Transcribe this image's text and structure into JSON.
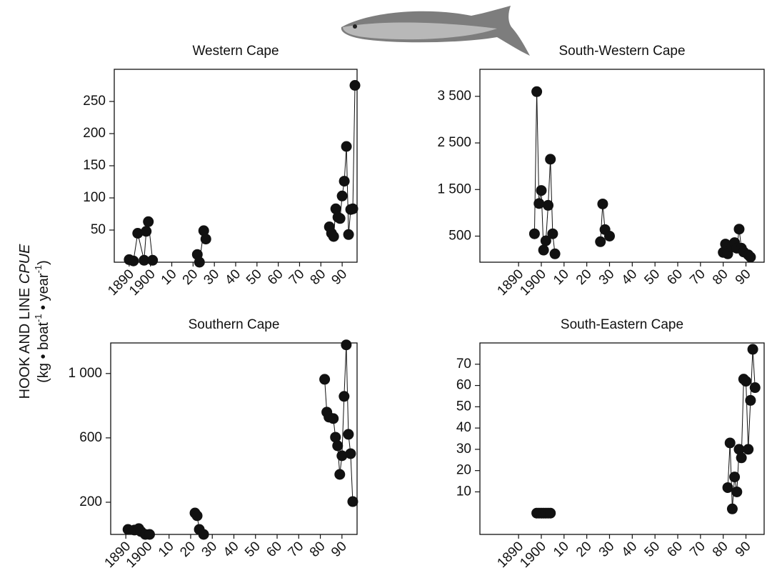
{
  "y_axis_label": {
    "text": "HOOK AND LINE",
    "emphasis": "CPUE",
    "units": [
      "(kg • boat",
      "-1",
      " • year",
      "-1",
      ")"
    ]
  },
  "chart_data": [
    {
      "type": "line",
      "title": "Western Cape",
      "x": [
        1890,
        1892,
        1894,
        1897,
        1898,
        1899,
        1901,
        1922,
        1923,
        1925,
        1926,
        1984,
        1985,
        1986,
        1987,
        1988,
        1989,
        1990,
        1991,
        1992,
        1993,
        1994,
        1995,
        1996
      ],
      "values": [
        4,
        2,
        45,
        3,
        48,
        63,
        3,
        12,
        0,
        49,
        36,
        55,
        45,
        40,
        83,
        70,
        68,
        103,
        126,
        180,
        43,
        82,
        83,
        275
      ],
      "color": "#111111",
      "xlim": [
        1883,
        1997
      ],
      "ylim": [
        0,
        300
      ],
      "xticks": [
        1890,
        1900,
        {
          "value": 1910,
          "label": "10"
        },
        {
          "value": 1920,
          "label": "20"
        },
        {
          "value": 1930,
          "label": "30"
        },
        {
          "value": 1940,
          "label": "40"
        },
        {
          "value": 1950,
          "label": "50"
        },
        {
          "value": 1960,
          "label": "60"
        },
        {
          "value": 1970,
          "label": "70"
        },
        {
          "value": 1980,
          "label": "80"
        },
        {
          "value": 1990,
          "label": "90"
        }
      ],
      "yticks": [
        50,
        100,
        150,
        200,
        250
      ]
    },
    {
      "type": "line",
      "title": "South-Western Cape",
      "x": [
        1897,
        1898,
        1899,
        1900,
        1901,
        1902,
        1903,
        1904,
        1905,
        1906,
        1926,
        1927,
        1928,
        1930,
        1980,
        1981,
        1982,
        1984,
        1985,
        1986,
        1987,
        1988,
        1989,
        1991,
        1992
      ],
      "values": [
        550,
        3600,
        1200,
        1480,
        200,
        400,
        1160,
        2150,
        550,
        120,
        380,
        1190,
        640,
        500,
        150,
        330,
        120,
        270,
        360,
        240,
        650,
        240,
        160,
        100,
        50
      ],
      "color": "#111111",
      "xlim": [
        1873,
        1998
      ],
      "ylim": [
        -60,
        4080
      ],
      "xticks": [
        1890,
        1900,
        {
          "value": 1910,
          "label": "10"
        },
        {
          "value": 1920,
          "label": "20"
        },
        {
          "value": 1930,
          "label": "30"
        },
        {
          "value": 1940,
          "label": "40"
        },
        {
          "value": 1950,
          "label": "50"
        },
        {
          "value": 1960,
          "label": "60"
        },
        {
          "value": 1970,
          "label": "70"
        },
        {
          "value": 1980,
          "label": "80"
        },
        {
          "value": 1990,
          "label": "90"
        }
      ],
      "yticks": [
        500,
        {
          "value": 1500,
          "label": "1 500"
        },
        {
          "value": 2500,
          "label": "2 500"
        },
        {
          "value": 3500,
          "label": "3 500"
        }
      ]
    },
    {
      "type": "line",
      "title": "Southern Cape",
      "x": [
        1891,
        1894,
        1896,
        1897,
        1899,
        1901,
        1922,
        1923,
        1924,
        1926,
        1982,
        1983,
        1984,
        1986,
        1987,
        1988,
        1989,
        1990,
        1991,
        1992,
        1993,
        1994,
        1995
      ],
      "values": [
        31,
        27,
        36,
        18,
        0,
        0,
        133,
        116,
        31,
        0,
        964,
        760,
        729,
        720,
        604,
        551,
        373,
        489,
        858,
        1178,
        622,
        502,
        204
      ],
      "color": "#111111",
      "xlim": [
        1883,
        1997
      ],
      "ylim": [
        0,
        1190
      ],
      "xticks": [
        1890,
        1900,
        {
          "value": 1910,
          "label": "10"
        },
        {
          "value": 1920,
          "label": "20"
        },
        {
          "value": 1930,
          "label": "30"
        },
        {
          "value": 1940,
          "label": "40"
        },
        {
          "value": 1950,
          "label": "50"
        },
        {
          "value": 1960,
          "label": "60"
        },
        {
          "value": 1970,
          "label": "70"
        },
        {
          "value": 1980,
          "label": "80"
        },
        {
          "value": 1990,
          "label": "90"
        }
      ],
      "yticks": [
        200,
        600,
        {
          "value": 1000,
          "label": "1 000"
        }
      ]
    },
    {
      "type": "line",
      "title": "South-Eastern Cape",
      "x": [
        1898,
        1899,
        1900,
        1901,
        1902,
        1903,
        1904,
        1982,
        1983,
        1984,
        1985,
        1986,
        1987,
        1988,
        1989,
        1990,
        1991,
        1992,
        1993,
        1994
      ],
      "values": [
        0,
        0,
        0,
        0,
        0,
        0,
        0,
        12,
        33,
        2,
        17,
        10,
        30,
        26,
        63,
        62,
        30,
        53,
        77,
        59
      ],
      "color": "#111111",
      "xlim": [
        1873,
        1998
      ],
      "ylim": [
        -10,
        80
      ],
      "xticks": [
        1890,
        1900,
        {
          "value": 1910,
          "label": "10"
        },
        {
          "value": 1920,
          "label": "20"
        },
        {
          "value": 1930,
          "label": "30"
        },
        {
          "value": 1940,
          "label": "40"
        },
        {
          "value": 1950,
          "label": "50"
        },
        {
          "value": 1960,
          "label": "60"
        },
        {
          "value": 1970,
          "label": "70"
        },
        {
          "value": 1980,
          "label": "80"
        },
        {
          "value": 1990,
          "label": "90"
        }
      ],
      "yticks": [
        10,
        20,
        30,
        40,
        50,
        60,
        70
      ]
    }
  ]
}
